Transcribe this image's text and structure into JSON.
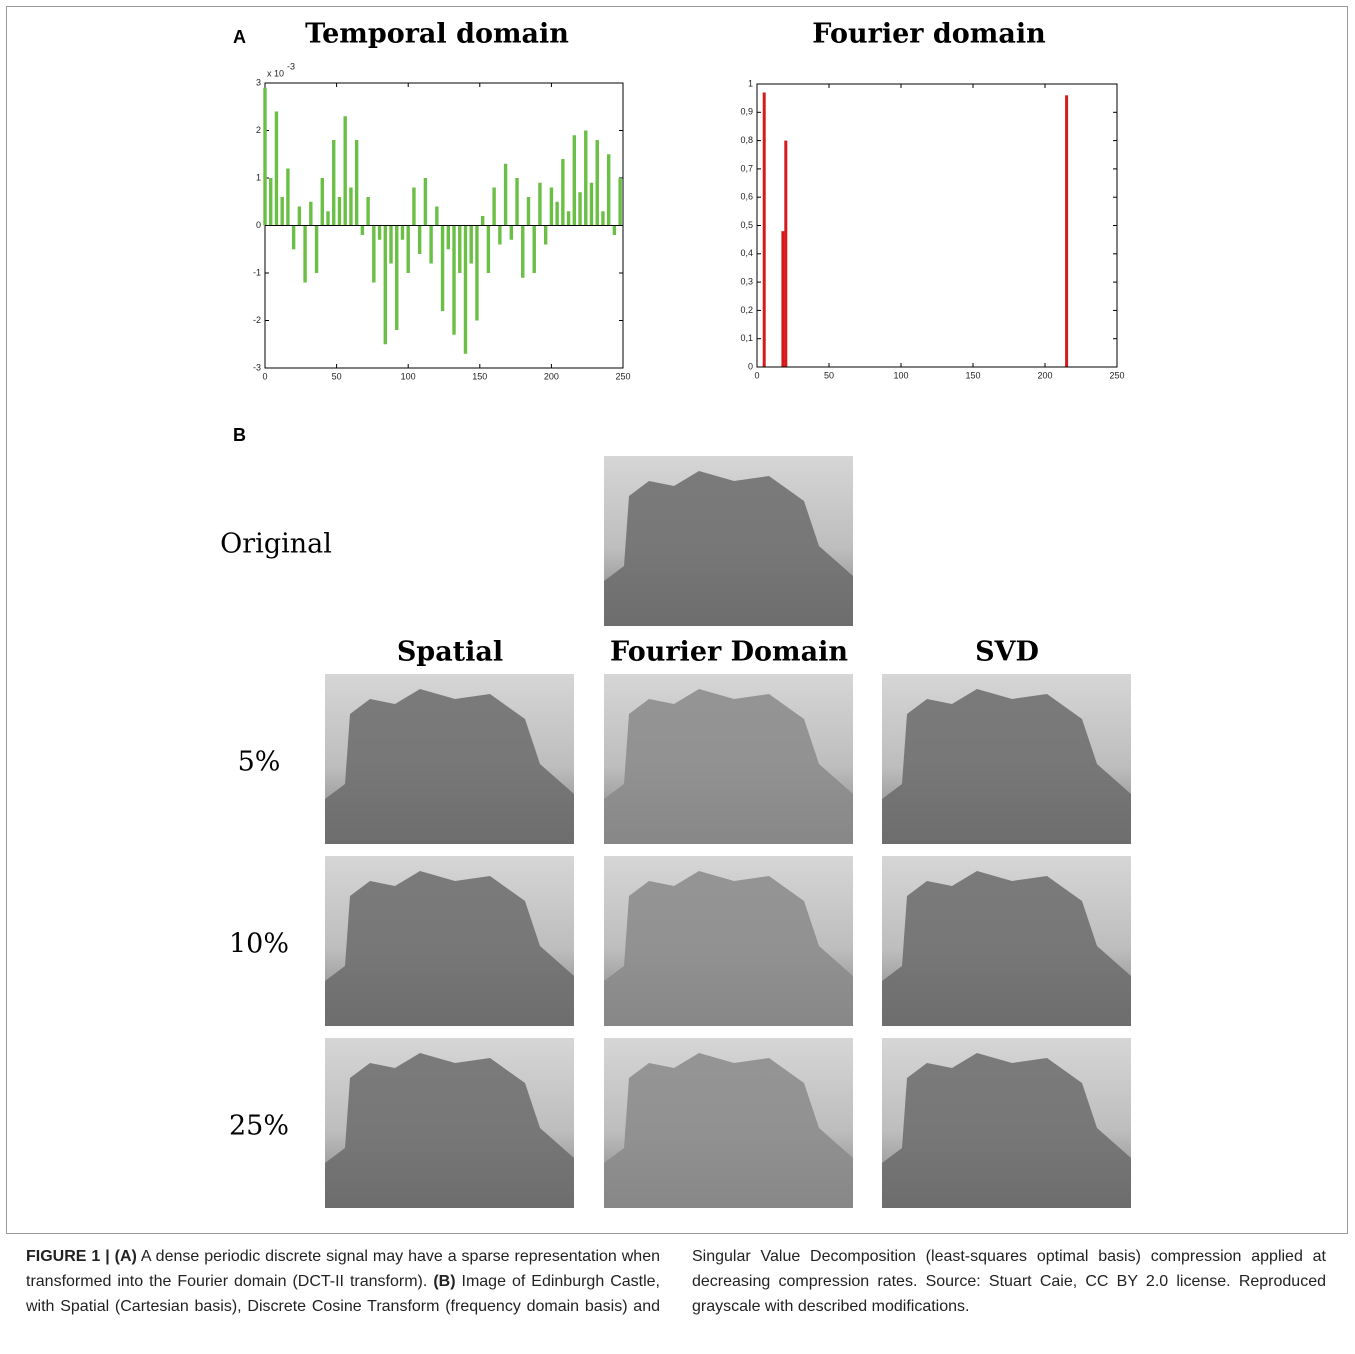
{
  "panel_a": {
    "label": "A"
  },
  "chart_data": [
    {
      "type": "bar",
      "title": "Temporal domain",
      "color": "#6abf45",
      "y_multiplier": "x 10",
      "y_multiplier_exponent": "-3",
      "x": [
        0,
        4,
        8,
        12,
        16,
        20,
        24,
        28,
        32,
        36,
        40,
        44,
        48,
        52,
        56,
        60,
        64,
        68,
        72,
        76,
        80,
        84,
        88,
        92,
        96,
        100,
        104,
        108,
        112,
        116,
        120,
        124,
        128,
        132,
        136,
        140,
        144,
        148,
        152,
        156,
        160,
        164,
        168,
        172,
        176,
        180,
        184,
        188,
        192,
        196,
        200,
        204,
        208,
        212,
        216,
        220,
        224,
        228,
        232,
        236,
        240,
        244,
        248
      ],
      "values": [
        2.9,
        1.0,
        2.4,
        0.6,
        1.2,
        -0.5,
        0.4,
        -1.2,
        0.5,
        -1.0,
        1.0,
        0.3,
        1.8,
        0.6,
        2.3,
        0.8,
        1.8,
        -0.2,
        0.6,
        -1.2,
        -0.3,
        -2.5,
        -0.8,
        -2.2,
        -0.3,
        -1.0,
        0.8,
        -0.6,
        1.0,
        -0.8,
        0.4,
        -1.8,
        -0.5,
        -2.3,
        -1.0,
        -2.7,
        -0.8,
        -2.0,
        0.2,
        -1.0,
        0.8,
        -0.4,
        1.3,
        -0.3,
        1.0,
        -1.1,
        0.6,
        -1.0,
        0.9,
        -0.4,
        0.8,
        0.5,
        1.4,
        0.3,
        1.9,
        0.7,
        2.0,
        0.9,
        1.8,
        0.3,
        1.5,
        -0.2,
        1.0
      ],
      "xlim": [
        0,
        250
      ],
      "ylim": [
        -3,
        3
      ],
      "xticks": [
        0,
        50,
        100,
        150,
        200,
        250
      ],
      "yticks": [
        -3,
        -2,
        -1,
        0,
        1,
        2,
        3
      ]
    },
    {
      "type": "bar",
      "title": "Fourier domain",
      "color": "#d7191c",
      "x": [
        5,
        18,
        20,
        215
      ],
      "values": [
        0.97,
        0.48,
        0.8,
        0.96
      ],
      "xlim": [
        0,
        250
      ],
      "ylim": [
        0,
        1
      ],
      "xticks": [
        0,
        50,
        100,
        150,
        200,
        250
      ],
      "yticks": [
        0,
        {
          "value": 0.1,
          "label": "0,1"
        },
        {
          "value": 0.2,
          "label": "0,2"
        },
        {
          "value": 0.3,
          "label": "0,3"
        },
        {
          "value": 0.4,
          "label": "0,4"
        },
        {
          "value": 0.5,
          "label": "0,5"
        },
        {
          "value": 0.6,
          "label": "0,6"
        },
        {
          "value": 0.7,
          "label": "0,7"
        },
        {
          "value": 0.8,
          "label": "0,8"
        },
        {
          "value": 0.9,
          "label": "0,9"
        },
        1
      ]
    }
  ],
  "panel_b": {
    "label": "B",
    "original_label": "Original",
    "columns": [
      "Spatial",
      "Fourier Domain",
      "SVD"
    ],
    "rows": [
      "5%",
      "10%",
      "25%"
    ]
  },
  "caption": {
    "figure": "FIGURE 1 | ",
    "a_tag": "(A)",
    "a_text": " A dense periodic discrete signal may have a sparse representation when transformed into the Fourier domain (DCT-II transform). ",
    "b_tag": "(B)",
    "b_text": " Image of Edinburgh Castle, with Spatial (Cartesian basis), Discrete Cosine Transform (frequency domain basis) and Singular Value Decomposition (least-squares optimal basis) compression applied at decreasing compression rates. Source: Stuart Caie, CC BY 2.0 license. Reproduced grayscale with described modifications."
  }
}
